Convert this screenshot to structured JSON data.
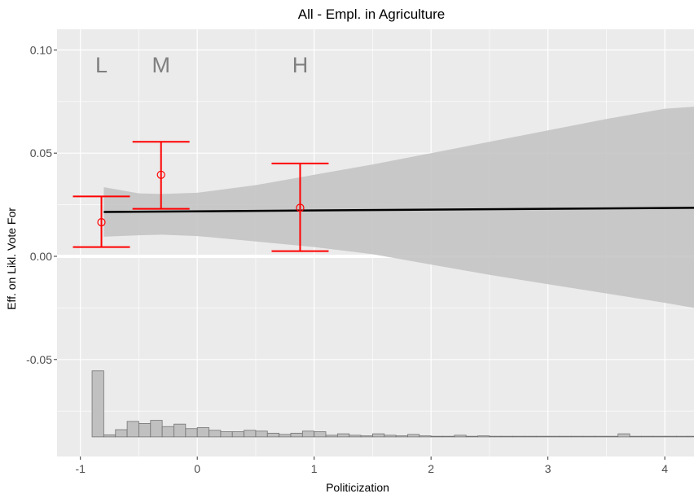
{
  "chart_data": {
    "type": "line",
    "title": "All - Empl. in Agriculture",
    "xlabel": "Politicization",
    "ylabel": "Eff. on Likl. Vote For",
    "xlim": [
      -1.2,
      4.25
    ],
    "ylim": [
      -0.097,
      0.11
    ],
    "x_ticks": [
      -1,
      0,
      1,
      2,
      3,
      4
    ],
    "x_tick_labels": [
      "-1",
      "0",
      "1",
      "2",
      "3",
      "4"
    ],
    "y_ticks": [
      -0.05,
      0.0,
      0.05,
      0.1
    ],
    "y_tick_labels": [
      "-0.05",
      "0.00",
      "0.05",
      "0.10"
    ],
    "grid": true,
    "reference_line_y": 0,
    "regression_line": {
      "x": [
        -0.8,
        4.25
      ],
      "y": [
        0.0215,
        0.0235
      ]
    },
    "confidence_band": {
      "x": [
        -0.8,
        -0.5,
        -0.3,
        0.0,
        0.5,
        1.0,
        1.5,
        2.0,
        2.5,
        3.0,
        3.5,
        4.0,
        4.25
      ],
      "upper": [
        0.0335,
        0.0305,
        0.0302,
        0.0308,
        0.0345,
        0.0395,
        0.0445,
        0.05,
        0.0555,
        0.061,
        0.0665,
        0.0715,
        0.0725
      ],
      "lower": [
        0.0095,
        0.0102,
        0.0105,
        0.0098,
        0.0072,
        0.0045,
        0.001,
        -0.004,
        -0.009,
        -0.0135,
        -0.018,
        -0.0225,
        -0.025
      ]
    },
    "point_estimates": [
      {
        "label": "L",
        "x": -0.82,
        "y": 0.0165,
        "lower": 0.0045,
        "upper": 0.029
      },
      {
        "label": "M",
        "x": -0.31,
        "y": 0.0395,
        "lower": 0.023,
        "upper": 0.0555
      },
      {
        "label": "H",
        "x": 0.88,
        "y": 0.0235,
        "lower": 0.0025,
        "upper": 0.045
      }
    ],
    "histogram": {
      "baseline": -0.0875,
      "bin_width": 0.1,
      "bins_left": [
        -0.9,
        -0.8,
        -0.7,
        -0.6,
        -0.5,
        -0.4,
        -0.3,
        -0.2,
        -0.1,
        0.0,
        0.1,
        0.2,
        0.3,
        0.4,
        0.5,
        0.6,
        0.7,
        0.8,
        0.9,
        1.0,
        1.1,
        1.2,
        1.3,
        1.4,
        1.5,
        1.6,
        1.7,
        1.8,
        1.9,
        2.0,
        2.1,
        2.2,
        2.3,
        2.4,
        2.5,
        2.6,
        2.7,
        2.8,
        2.9,
        3.0,
        3.1,
        3.2,
        3.3,
        3.4,
        3.5,
        3.6,
        3.7,
        3.8,
        3.9,
        4.0,
        4.1,
        4.2
      ],
      "heights": [
        0.032,
        0.001,
        0.0035,
        0.0075,
        0.0065,
        0.008,
        0.005,
        0.0062,
        0.004,
        0.0045,
        0.0032,
        0.0025,
        0.0025,
        0.0032,
        0.0028,
        0.0018,
        0.0012,
        0.0018,
        0.0028,
        0.0025,
        0.0008,
        0.0015,
        0.0008,
        0.0005,
        0.0015,
        0.0008,
        0.0005,
        0.0012,
        0.0005,
        0.0003,
        0.0003,
        0.0008,
        0.0003,
        0.0005,
        0.0003,
        0.0003,
        0.0003,
        0.0003,
        0.0003,
        0.0003,
        0.0003,
        0.0003,
        0.0003,
        0.0003,
        0.0003,
        0.0015,
        0.0003,
        0.0003,
        0.0003,
        0.0003,
        0.0003,
        0.0003
      ]
    },
    "colors": {
      "panel_background": "#ebebeb",
      "grid": "#ffffff",
      "band": "#c4c4c4",
      "line": "#000000",
      "estimate": "#ff0000",
      "histogram_fill": "#c0c0c0",
      "histogram_stroke": "#737373",
      "lmh_text": "#7f7f7f"
    }
  }
}
